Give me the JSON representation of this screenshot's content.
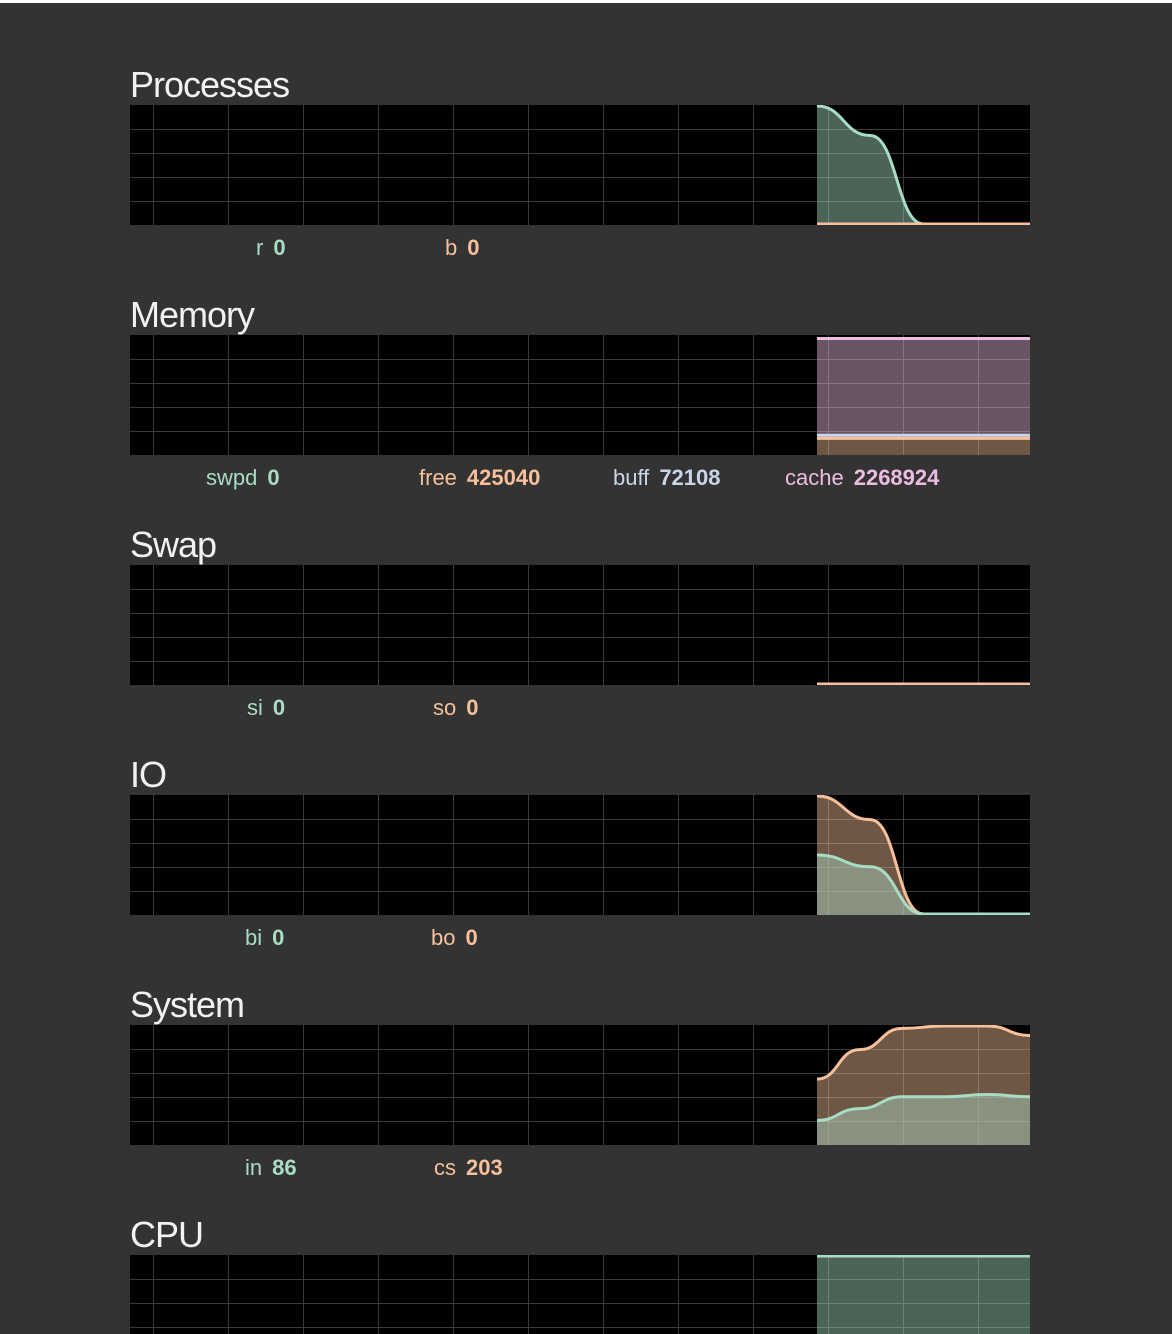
{
  "colors": {
    "background": "#333333",
    "graph_background": "#000000",
    "grid": "#3a3a3a",
    "series": [
      "#a8dcc4",
      "#f7c09a",
      "#c9d6ea",
      "#ecbde0"
    ]
  },
  "sections": [
    {
      "id": "processes",
      "title": "Processes",
      "legend": [
        {
          "key": "r",
          "value": "0"
        },
        {
          "key": "b",
          "value": "0"
        }
      ]
    },
    {
      "id": "memory",
      "title": "Memory",
      "legend": [
        {
          "key": "swpd",
          "value": "0"
        },
        {
          "key": "free",
          "value": "425040"
        },
        {
          "key": "buff",
          "value": "72108"
        },
        {
          "key": "cache",
          "value": "2268924"
        }
      ]
    },
    {
      "id": "swap",
      "title": "Swap",
      "legend": [
        {
          "key": "si",
          "value": "0"
        },
        {
          "key": "so",
          "value": "0"
        }
      ]
    },
    {
      "id": "io",
      "title": "IO",
      "legend": [
        {
          "key": "bi",
          "value": "0"
        },
        {
          "key": "bo",
          "value": "0"
        }
      ]
    },
    {
      "id": "system",
      "title": "System",
      "legend": [
        {
          "key": "in",
          "value": "86"
        },
        {
          "key": "cs",
          "value": "203"
        }
      ]
    },
    {
      "id": "cpu",
      "title": "CPU",
      "legend": []
    }
  ],
  "chart_data": [
    {
      "type": "area",
      "title": "Processes",
      "series": [
        {
          "name": "r",
          "values": [
            4,
            3,
            0,
            0,
            0
          ]
        },
        {
          "name": "b",
          "values": [
            0,
            0,
            0,
            0,
            0
          ]
        }
      ]
    },
    {
      "type": "area",
      "title": "Memory",
      "series": [
        {
          "name": "swpd",
          "values": [
            0,
            0,
            0,
            0,
            0
          ]
        },
        {
          "name": "free",
          "values": [
            425040,
            425040,
            425040,
            425040,
            425040
          ]
        },
        {
          "name": "buff",
          "values": [
            72108,
            72108,
            72108,
            72108,
            72108
          ]
        },
        {
          "name": "cache",
          "values": [
            2268924,
            2268924,
            2268924,
            2268924,
            2268924
          ]
        }
      ]
    },
    {
      "type": "area",
      "title": "Swap",
      "series": [
        {
          "name": "si",
          "values": [
            0,
            0,
            0,
            0,
            0
          ]
        },
        {
          "name": "so",
          "values": [
            0,
            0,
            0,
            0,
            0
          ]
        }
      ]
    },
    {
      "type": "area",
      "title": "IO",
      "series": [
        {
          "name": "bi",
          "values": [
            50,
            40,
            0,
            0,
            0
          ]
        },
        {
          "name": "bo",
          "values": [
            100,
            80,
            0,
            0,
            0
          ]
        }
      ]
    },
    {
      "type": "area",
      "title": "System",
      "series": [
        {
          "name": "in",
          "values": [
            20,
            30,
            40,
            40,
            42,
            40
          ]
        },
        {
          "name": "cs",
          "values": [
            55,
            80,
            98,
            100,
            100,
            92
          ]
        }
      ]
    },
    {
      "type": "area",
      "title": "CPU",
      "series": [
        {
          "name": "",
          "values": [
            100,
            100,
            100,
            100,
            100
          ]
        }
      ]
    }
  ]
}
